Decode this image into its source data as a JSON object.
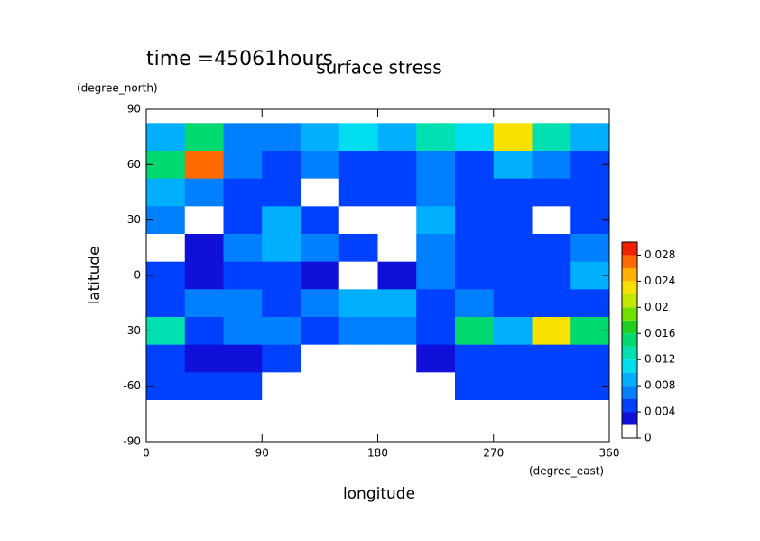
{
  "chart_data": {
    "type": "contour",
    "title": "surface stress",
    "subtitle": "time =45061hours",
    "x_label": "longitude",
    "x_unit": "(degree_east)",
    "y_label": "latitude",
    "y_unit": "(degree_north)",
    "x": [
      15,
      45,
      75,
      105,
      135,
      165,
      195,
      225,
      255,
      285,
      315,
      345
    ],
    "y": [
      75,
      60,
      45,
      30,
      15,
      0,
      -15,
      -30,
      -45,
      -60,
      -75
    ],
    "values": [
      [
        0.008,
        0.014,
        0.006,
        0.006,
        0.008,
        0.01,
        0.008,
        0.012,
        0.01,
        0.022,
        0.012,
        0.008
      ],
      [
        0.014,
        0.026,
        0.006,
        0.004,
        0.006,
        0.004,
        0.004,
        0.006,
        0.004,
        0.008,
        0.006,
        0.004
      ],
      [
        0.008,
        0.006,
        0.004,
        0.004,
        0,
        0.004,
        0.004,
        0.006,
        0.004,
        0.004,
        0.004,
        0.004
      ],
      [
        0.006,
        0,
        0.004,
        0.008,
        0.004,
        0,
        0,
        0.008,
        0.004,
        0.004,
        0,
        0.004
      ],
      [
        0,
        0.002,
        0.006,
        0.008,
        0.006,
        0.004,
        0,
        0.006,
        0.004,
        0.004,
        0.004,
        0.006
      ],
      [
        0.004,
        0.002,
        0.004,
        0.004,
        0.002,
        0,
        0.002,
        0.006,
        0.004,
        0.004,
        0.004,
        0.008
      ],
      [
        0.004,
        0.006,
        0.006,
        0.004,
        0.006,
        0.008,
        0.008,
        0.004,
        0.006,
        0.004,
        0.004,
        0.004
      ],
      [
        0.012,
        0.004,
        0.006,
        0.006,
        0.004,
        0.006,
        0.006,
        0.004,
        0.014,
        0.008,
        0.022,
        0.014
      ],
      [
        0.004,
        0.002,
        0.002,
        0.004,
        0,
        0,
        0,
        0.002,
        0.004,
        0.004,
        0.004,
        0.004
      ],
      [
        0.004,
        0.004,
        0.004,
        0,
        0,
        0,
        0,
        0,
        0.004,
        0.004,
        0.004,
        0.004
      ],
      [
        0,
        0,
        0,
        0,
        0,
        0,
        0,
        0,
        0,
        0,
        0,
        0
      ]
    ],
    "xlim": [
      0,
      360
    ],
    "xticks": [
      0,
      90,
      180,
      270,
      360
    ],
    "ylim": [
      -90,
      90
    ],
    "yticks": [
      -90,
      -60,
      -30,
      0,
      30,
      60,
      90
    ],
    "levels": [
      0,
      0.002,
      0.004,
      0.006,
      0.008,
      0.01,
      0.012,
      0.014,
      0.016,
      0.018,
      0.02,
      0.022,
      0.024,
      0.026,
      0.028,
      0.03
    ],
    "colors": [
      "#ffffff",
      "#1010d8",
      "#0040ff",
      "#0080ff",
      "#00b0ff",
      "#00dcf0",
      "#00e0b0",
      "#00d870",
      "#20d020",
      "#70e000",
      "#c0e800",
      "#f8e000",
      "#ffb000",
      "#ff6a00",
      "#f02000"
    ],
    "colorbar_ticks": [
      0,
      0.004,
      0.008,
      0.012,
      0.016,
      0.02,
      0.024,
      0.028
    ]
  }
}
